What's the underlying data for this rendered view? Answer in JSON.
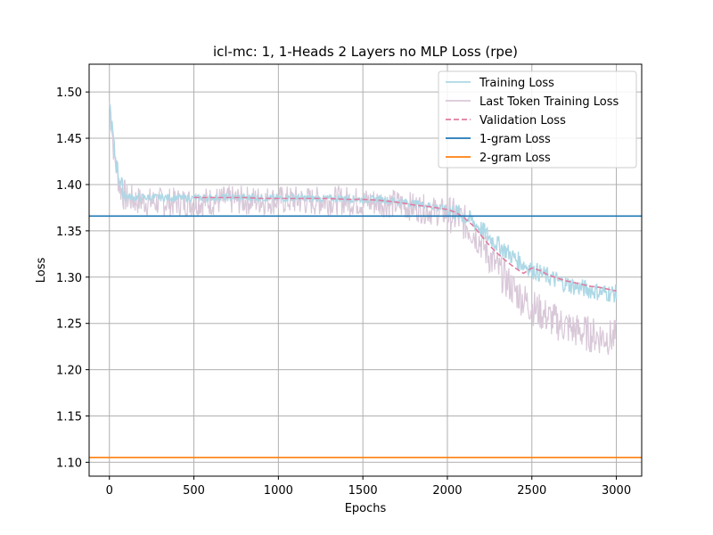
{
  "chart_data": {
    "type": "line",
    "title": "icl-mc: 1, 1-Heads 2 Layers no MLP  Loss (rpe)",
    "xlabel": "Epochs",
    "ylabel": "Loss",
    "xlim": [
      -120,
      3150
    ],
    "ylim": [
      1.085,
      1.53
    ],
    "xticks": [
      0,
      500,
      1000,
      1500,
      2000,
      2500,
      3000
    ],
    "yticks": [
      1.1,
      1.15,
      1.2,
      1.25,
      1.3,
      1.35,
      1.4,
      1.45,
      1.5
    ],
    "grid": true,
    "legend_position": "top-right",
    "series": [
      {
        "name": "Training Loss",
        "color": "#add8e6",
        "style": "solid",
        "x": [
          0,
          10,
          20,
          30,
          40,
          50,
          60,
          70,
          80,
          90,
          100,
          120,
          150,
          200,
          250,
          300,
          400,
          500,
          600,
          700,
          800,
          900,
          1000,
          1100,
          1200,
          1300,
          1400,
          1500,
          1600,
          1700,
          1800,
          1900,
          2000,
          2050,
          2100,
          2150,
          2200,
          2250,
          2300,
          2350,
          2400,
          2450,
          2500,
          2550,
          2600,
          2650,
          2700,
          2750,
          2800,
          2850,
          2900,
          2950,
          3000
        ],
        "y": [
          1.49,
          1.47,
          1.455,
          1.435,
          1.425,
          1.415,
          1.405,
          1.4,
          1.395,
          1.39,
          1.388,
          1.387,
          1.386,
          1.386,
          1.386,
          1.386,
          1.386,
          1.385,
          1.386,
          1.386,
          1.386,
          1.386,
          1.385,
          1.386,
          1.385,
          1.385,
          1.385,
          1.384,
          1.384,
          1.382,
          1.38,
          1.377,
          1.373,
          1.37,
          1.366,
          1.36,
          1.352,
          1.343,
          1.335,
          1.328,
          1.32,
          1.314,
          1.309,
          1.304,
          1.3,
          1.296,
          1.293,
          1.29,
          1.288,
          1.286,
          1.284,
          1.283,
          1.282
        ]
      },
      {
        "name": "Last Token Training Loss",
        "color": "#d8c8d8",
        "style": "solid",
        "x": [
          0,
          10,
          20,
          30,
          40,
          50,
          60,
          70,
          80,
          90,
          100,
          120,
          150,
          200,
          250,
          300,
          400,
          500,
          600,
          700,
          800,
          900,
          1000,
          1100,
          1200,
          1300,
          1400,
          1500,
          1600,
          1700,
          1800,
          1900,
          2000,
          2050,
          2100,
          2150,
          2200,
          2250,
          2300,
          2350,
          2400,
          2450,
          2500,
          2550,
          2600,
          2650,
          2700,
          2750,
          2800,
          2850,
          2900,
          2950,
          3000
        ],
        "y": [
          1.49,
          1.47,
          1.45,
          1.43,
          1.42,
          1.41,
          1.4,
          1.395,
          1.39,
          1.388,
          1.386,
          1.385,
          1.383,
          1.382,
          1.381,
          1.381,
          1.381,
          1.381,
          1.382,
          1.383,
          1.383,
          1.383,
          1.383,
          1.383,
          1.382,
          1.383,
          1.383,
          1.381,
          1.381,
          1.379,
          1.376,
          1.372,
          1.369,
          1.365,
          1.359,
          1.35,
          1.338,
          1.322,
          1.308,
          1.296,
          1.285,
          1.276,
          1.268,
          1.262,
          1.256,
          1.251,
          1.247,
          1.243,
          1.24,
          1.238,
          1.236,
          1.235,
          1.234
        ]
      },
      {
        "name": "Validation Loss",
        "color": "#e07ca0",
        "style": "dashed",
        "x": [
          500,
          600,
          700,
          800,
          900,
          1000,
          1100,
          1200,
          1300,
          1400,
          1500,
          1600,
          1700,
          1800,
          1900,
          2000,
          2050,
          2100,
          2150,
          2200,
          2250,
          2300,
          2350,
          2400,
          2450,
          2500,
          2550,
          2600,
          2650,
          2700,
          2750,
          2800,
          2850,
          2900,
          2950,
          3000
        ],
        "y": [
          1.386,
          1.386,
          1.386,
          1.386,
          1.385,
          1.385,
          1.385,
          1.385,
          1.385,
          1.384,
          1.384,
          1.383,
          1.381,
          1.378,
          1.376,
          1.373,
          1.37,
          1.364,
          1.356,
          1.345,
          1.334,
          1.325,
          1.317,
          1.31,
          1.304,
          1.31,
          1.307,
          1.302,
          1.299,
          1.296,
          1.294,
          1.292,
          1.29,
          1.289,
          1.287,
          1.285
        ]
      },
      {
        "name": "1-gram Loss",
        "color": "#1f77b4",
        "style": "hline",
        "value": 1.366
      },
      {
        "name": "2-gram Loss",
        "color": "#ff7f0e",
        "style": "hline",
        "value": 1.105
      }
    ]
  }
}
